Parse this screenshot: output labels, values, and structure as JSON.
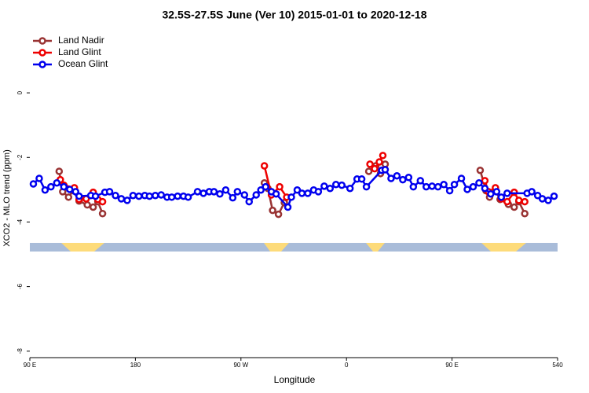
{
  "chart_data": {
    "type": "line",
    "title": "32.5S-27.5S June (Ver 10)   2015-01-01 to 2020-12-18",
    "x_label": "Longitude",
    "y_label": "XCO2 - MLO trend (ppm)",
    "xlim": [
      90,
      540
    ],
    "ylim": [
      -8.2,
      1.95
    ],
    "xticks": [
      {
        "value": 90,
        "label": "90 E"
      },
      180,
      {
        "value": 270,
        "label": "90 W"
      },
      {
        "value": 360,
        "label": "0"
      },
      {
        "value": 450,
        "label": "90 E"
      },
      540
    ],
    "yticks": [
      -8,
      -6,
      -4,
      -2,
      0
    ],
    "legend": "top-left",
    "series": [
      {
        "name": "Land Nadir",
        "color": "#993333",
        "x": [
          115,
          118,
          123,
          127,
          132,
          139,
          144,
          148,
          152,
          null,
          290,
          293,
          297,
          302,
          307,
          null,
          379,
          385,
          389,
          393,
          null,
          474,
          479,
          482,
          487,
          491,
          498,
          503,
          507,
          512
        ],
        "values": [
          -2.43,
          -3.06,
          -3.23,
          -3.03,
          -3.35,
          -3.47,
          -3.54,
          -3.37,
          -3.74,
          null,
          -2.79,
          -2.96,
          -3.64,
          -3.76,
          -3.4,
          null,
          -2.43,
          -2.26,
          -2.5,
          -2.21,
          null,
          -2.4,
          -3.03,
          -3.23,
          -3.03,
          -3.3,
          -3.45,
          -3.54,
          -3.37,
          -3.74
        ]
      },
      {
        "name": "Land Glint",
        "color": "#ee0000",
        "x": [
          116,
          119,
          128,
          132,
          138,
          144,
          148,
          152,
          null,
          290,
          296,
          303,
          309,
          null,
          380,
          384,
          388,
          391,
          null,
          478,
          481,
          487,
          492,
          497,
          503,
          507,
          512
        ],
        "values": [
          -2.69,
          -2.86,
          -2.94,
          -3.3,
          -3.28,
          -3.08,
          -3.3,
          -3.37,
          null,
          -2.26,
          -3.16,
          -2.91,
          -3.23,
          null,
          -2.21,
          -2.35,
          -2.14,
          -1.94,
          null,
          -2.72,
          -3.06,
          -2.94,
          -3.28,
          -3.37,
          -3.08,
          -3.33,
          -3.37
        ]
      },
      {
        "name": "Ocean Glint",
        "color": "#0000ee",
        "x": [
          93,
          98,
          103,
          108,
          113,
          119,
          124,
          129,
          132,
          142,
          146,
          154,
          158,
          163,
          168,
          173,
          178,
          183,
          188,
          192,
          197,
          202,
          207,
          211,
          216,
          221,
          225,
          233,
          238,
          243,
          247,
          252,
          257,
          263,
          267,
          273,
          277,
          283,
          287,
          291,
          296,
          300,
          310,
          313,
          318,
          322,
          327,
          332,
          336,
          341,
          346,
          351,
          356,
          363,
          369,
          373,
          377,
          390,
          393,
          398,
          403,
          408,
          413,
          417,
          423,
          428,
          433,
          438,
          443,
          448,
          452,
          458,
          463,
          468,
          473,
          478,
          483,
          488,
          492,
          497,
          514,
          518,
          523,
          527,
          532,
          537
        ],
        "values": [
          -2.82,
          -2.65,
          -3.01,
          -2.91,
          -2.79,
          -2.91,
          -2.99,
          -3.06,
          -3.2,
          -3.18,
          -3.2,
          -3.08,
          -3.06,
          -3.18,
          -3.28,
          -3.33,
          -3.18,
          -3.2,
          -3.18,
          -3.2,
          -3.18,
          -3.16,
          -3.23,
          -3.23,
          -3.2,
          -3.2,
          -3.23,
          -3.06,
          -3.11,
          -3.06,
          -3.06,
          -3.13,
          -3.01,
          -3.25,
          -3.06,
          -3.16,
          -3.37,
          -3.16,
          -3.01,
          -2.91,
          -3.06,
          -3.13,
          -3.54,
          -3.23,
          -3.01,
          -3.11,
          -3.11,
          -3.01,
          -3.06,
          -2.89,
          -2.96,
          -2.84,
          -2.86,
          -2.96,
          -2.67,
          -2.67,
          -2.91,
          -2.4,
          -2.38,
          -2.65,
          -2.57,
          -2.69,
          -2.62,
          -2.91,
          -2.72,
          -2.91,
          -2.89,
          -2.91,
          -2.84,
          -3.03,
          -2.84,
          -2.65,
          -2.99,
          -2.91,
          -2.79,
          -2.96,
          -3.13,
          -3.06,
          -3.23,
          -3.11,
          -3.11,
          -3.06,
          -3.18,
          -3.28,
          -3.33,
          -3.2
        ]
      }
    ]
  }
}
